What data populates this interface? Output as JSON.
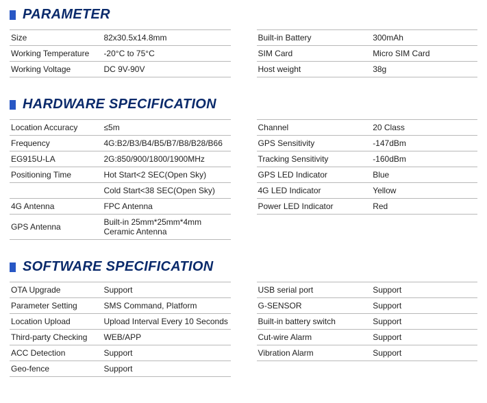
{
  "sections": [
    {
      "title": "PARAMETER",
      "left": [
        {
          "label": "Size",
          "value": "82x30.5x14.8mm"
        },
        {
          "label": "Working Temperature",
          "value": "-20°C to 75°C"
        },
        {
          "label": "Working Voltage",
          "value": "DC 9V-90V"
        }
      ],
      "right": [
        {
          "label": "Built-in Battery",
          "value": "300mAh"
        },
        {
          "label": "SIM Card",
          "value": "Micro SIM Card"
        },
        {
          "label": "Host weight",
          "value": "38g"
        }
      ]
    },
    {
      "title": "HARDWARE SPECIFICATION",
      "left": [
        {
          "label": "Location Accuracy",
          "value": "≤5m"
        },
        {
          "label": "Frequency",
          "value": "4G:B2/B3/B4/B5/B7/B8/B28/B66"
        },
        {
          "label": "EG915U-LA",
          "value": "2G:850/900/1800/1900MHz"
        },
        {
          "label": "Positioning Time",
          "value": "Hot Start<2 SEC(Open Sky)"
        },
        {
          "label": "",
          "value": "Cold Start<38 SEC(Open Sky)"
        },
        {
          "label": "4G Antenna",
          "value": "FPC Antenna"
        },
        {
          "label": "GPS Antenna",
          "value": "Built-in 25mm*25mm*4mm Ceramic Antenna"
        }
      ],
      "right": [
        {
          "label": "Channel",
          "value": "20 Class"
        },
        {
          "label": "GPS Sensitivity",
          "value": "-147dBm"
        },
        {
          "label": "Tracking Sensitivity",
          "value": "-160dBm"
        },
        {
          "label": "GPS LED Indicator",
          "value": "Blue"
        },
        {
          "label": "4G LED Indicator",
          "value": "Yellow"
        },
        {
          "label": "Power LED Indicator",
          "value": "Red"
        }
      ]
    },
    {
      "title": "SOFTWARE SPECIFICATION",
      "left": [
        {
          "label": "OTA Upgrade",
          "value": "Support"
        },
        {
          "label": "Parameter Setting",
          "value": "SMS Command, Platform"
        },
        {
          "label": "Location Upload",
          "value": "Upload Interval Every 10 Seconds"
        },
        {
          "label": "Third-party Checking",
          "value": "WEB/APP"
        },
        {
          "label": "ACC Detection",
          "value": "Support"
        },
        {
          "label": "Geo-fence",
          "value": "Support"
        }
      ],
      "right": [
        {
          "label": "USB serial port",
          "value": "Support"
        },
        {
          "label": "G-SENSOR",
          "value": "Support"
        },
        {
          "label": "Built-in battery switch",
          "value": "Support"
        },
        {
          "label": "Cut-wire Alarm",
          "value": "Support"
        },
        {
          "label": "Vibration Alarm",
          "value": "Support"
        }
      ]
    }
  ],
  "style": {
    "bullet_color": "#2857c4",
    "title_color": "#0a2a6b",
    "border_color": "#b8b8b8",
    "font_size_title": 20,
    "font_size_body": 12,
    "background": "#ffffff"
  }
}
